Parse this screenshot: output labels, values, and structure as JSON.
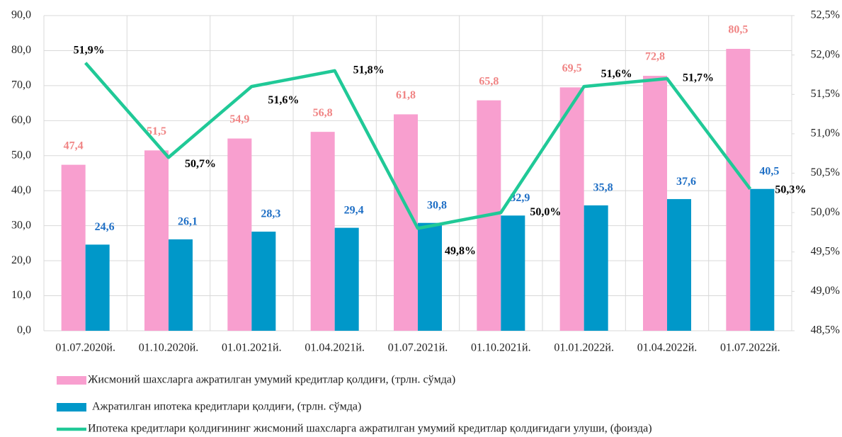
{
  "chart_data": {
    "type": "bar",
    "categories": [
      "01.07.2020й.",
      "01.10.2020й.",
      "01.01.2021й.",
      "01.04.2021й.",
      "01.07.2021й.",
      "01.10.2021й.",
      "01.01.2022й.",
      "01.04.2022й.",
      "01.07.2022й."
    ],
    "series": [
      {
        "name": "Жисмоний шахсларга ажратилган умумий кредитлар қолдиғи, (трлн. сўмда)",
        "type": "bar",
        "color": "#f89fcf",
        "label_color": "#f08484",
        "values": [
          47.4,
          51.5,
          54.9,
          56.8,
          61.8,
          65.8,
          69.5,
          72.8,
          80.5
        ],
        "value_labels": [
          "47,4",
          "51,5",
          "54,9",
          "56,8",
          "61,8",
          "65,8",
          "69,5",
          "72,8",
          "80,5"
        ]
      },
      {
        "name": "Ажратилган ипотека кредитлари қолдиғи, (трлн. сўмда)",
        "type": "bar",
        "color": "#0098c9",
        "label_color": "#1f6fc5",
        "values": [
          24.6,
          26.1,
          28.3,
          29.4,
          30.8,
          32.9,
          35.8,
          37.6,
          40.5
        ],
        "value_labels": [
          "24,6",
          "26,1",
          "28,3",
          "29,4",
          "30,8",
          "32,9",
          "35,8",
          "37,6",
          "40,5"
        ]
      },
      {
        "name": "Ипотека кредитлари қолдиғининг жисмоний шахсларга ажратилган умумий кредитлар қолдиғидаги улуши, (фоизда)",
        "type": "line",
        "axis": "y2",
        "color": "#20c997",
        "label_color": "#000000",
        "values": [
          51.9,
          50.7,
          51.6,
          51.8,
          49.8,
          50.0,
          51.6,
          51.7,
          50.3
        ],
        "value_labels": [
          "51,9%",
          "50,7%",
          "51,6%",
          "51,8%",
          "49,8%",
          "50,0%",
          "51,6%",
          "51,7%",
          "50,3%"
        ]
      }
    ],
    "ylim": [
      0,
      90
    ],
    "yticks": [
      {
        "value": 0,
        "label": "0,0"
      },
      {
        "value": 10,
        "label": "10,0"
      },
      {
        "value": 20,
        "label": "20,0"
      },
      {
        "value": 30,
        "label": "30,0"
      },
      {
        "value": 40,
        "label": "40,0"
      },
      {
        "value": 50,
        "label": "50,0"
      },
      {
        "value": 60,
        "label": "60,0"
      },
      {
        "value": 70,
        "label": "70,0"
      },
      {
        "value": 80,
        "label": "80,0"
      },
      {
        "value": 90,
        "label": "90,0"
      }
    ],
    "y2lim": [
      48.5,
      52.5
    ],
    "y2ticks": [
      {
        "value": 48.5,
        "label": "48,5%"
      },
      {
        "value": 49,
        "label": "49,0%"
      },
      {
        "value": 49.5,
        "label": "49,5%"
      },
      {
        "value": 50,
        "label": "50,0%"
      },
      {
        "value": 50.5,
        "label": "50,5%"
      },
      {
        "value": 51,
        "label": "51,0%"
      },
      {
        "value": 51.5,
        "label": "51,5%"
      },
      {
        "value": 52,
        "label": "52,0%"
      },
      {
        "value": 52.5,
        "label": "52,5%"
      }
    ],
    "grid": true,
    "legend": "bottom"
  }
}
